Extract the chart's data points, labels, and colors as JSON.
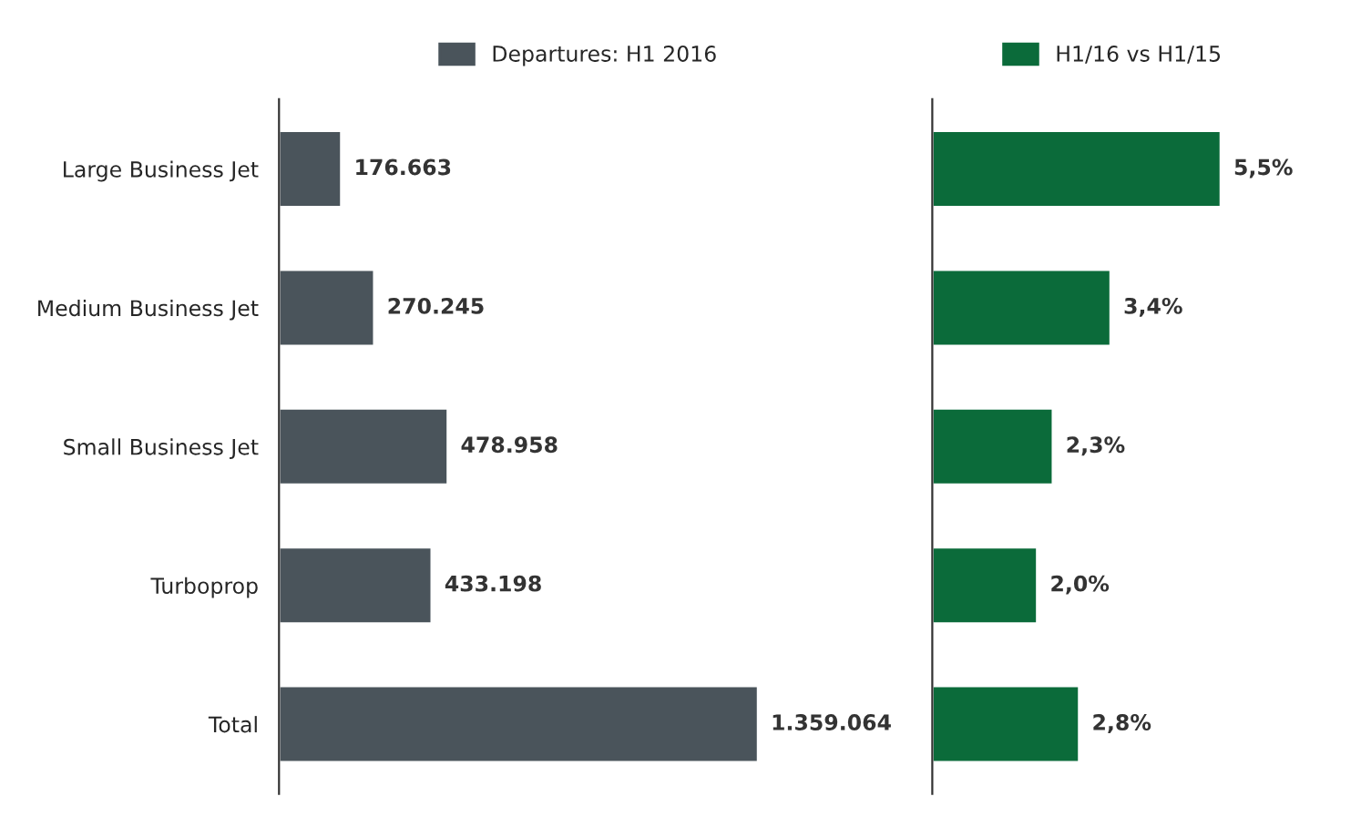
{
  "chart_data": [
    {
      "type": "bar",
      "orientation": "horizontal",
      "categories": [
        "Large Business Jet",
        "Medium Business Jet",
        "Small Business Jet",
        "Turboprop",
        "Total"
      ],
      "legend": "top",
      "series": [
        {
          "name": "Departures: H1 2016",
          "color": "#4a545b",
          "values": [
            176663,
            270245,
            478958,
            433198,
            1359064
          ],
          "value_labels": [
            "176.663",
            "270.245",
            "478.958",
            "433.198",
            "1.359.064"
          ]
        }
      ]
    },
    {
      "type": "bar",
      "orientation": "horizontal",
      "categories": [
        null,
        null,
        null,
        null,
        null
      ],
      "legend": "top",
      "series": [
        {
          "name": "H1/16 vs H1/15",
          "color": "#0b6b3a",
          "values": [
            5.5,
            3.4,
            2.3,
            2.0,
            2.8
          ],
          "value_labels": [
            "5,5%",
            "3,4%",
            "2,3%",
            "2,0%",
            "2,8%"
          ]
        }
      ]
    }
  ]
}
